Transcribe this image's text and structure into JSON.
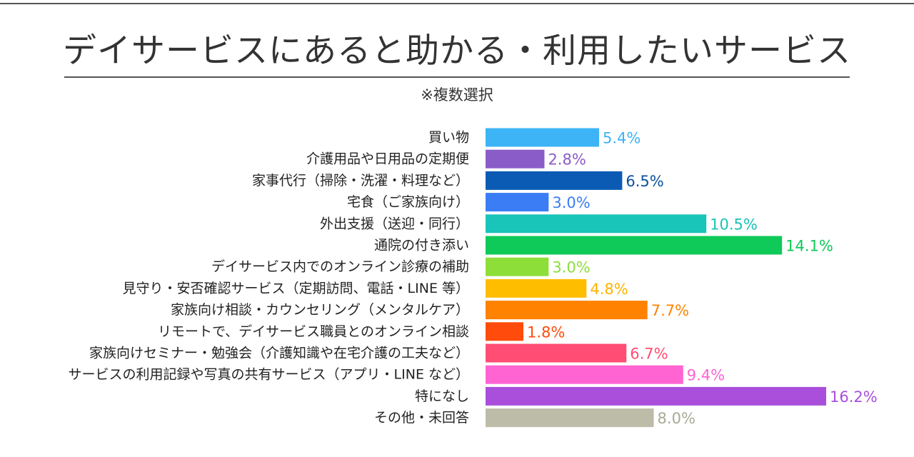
{
  "chart_data": {
    "type": "bar",
    "orientation": "horizontal",
    "title": "デイサービスにあると助かる・利用したいサービス",
    "subtitle": "※複数選択",
    "unit": "%",
    "categories": [
      "買い物",
      "介護用品や日用品の定期便",
      "家事代行（掃除・洗濯・料理など）",
      "宅食（ご家族向け）",
      "外出支援（送迎・同行）",
      "通院の付き添い",
      "デイサービス内でのオンライン診療の補助",
      "見守り・安否確認サービス（定期訪問、電話・LINE 等）",
      "家族向け相談・カウンセリング（メンタルケア）",
      "リモートで、デイサービス職員とのオンライン相談",
      "家族向けセミナー・勉強会（介護知識や在宅介護の工夫など）",
      "サービスの利用記録や写真の共有サービス（アプリ・LINE など）",
      "特になし",
      "その他・未回答"
    ],
    "values": [
      5.4,
      2.8,
      6.5,
      3.0,
      10.5,
      14.1,
      3.0,
      4.8,
      7.7,
      1.8,
      6.7,
      9.4,
      16.2,
      8.0
    ],
    "value_labels": [
      "5.4%",
      "2.8%",
      "6.5%",
      "3.0%",
      "10.5%",
      "14.1%",
      "3.0%",
      "4.8%",
      "7.7%",
      "1.8%",
      "6.7%",
      "9.4%",
      "16.2%",
      "8.0%"
    ],
    "colors": [
      "#3cb4f5",
      "#8a5cc8",
      "#0b5bb5",
      "#3b7df5",
      "#19c4b8",
      "#0fc958",
      "#8ede3a",
      "#ffbd00",
      "#ff8200",
      "#ff4c0c",
      "#ff4d74",
      "#ff64d2",
      "#a94fdb",
      "#bcbca8"
    ],
    "label_colors": [
      "#3cb4f5",
      "#8a5cc8",
      "#0b4f9e",
      "#3b7df5",
      "#19c4b8",
      "#0fc958",
      "#8ede3a",
      "#ffb300",
      "#ff8200",
      "#ff4c0c",
      "#ff4d74",
      "#ff64d2",
      "#a94fdb",
      "#a9a996"
    ],
    "xlim": [
      0,
      16.2
    ],
    "grid": false,
    "legend": "none"
  }
}
